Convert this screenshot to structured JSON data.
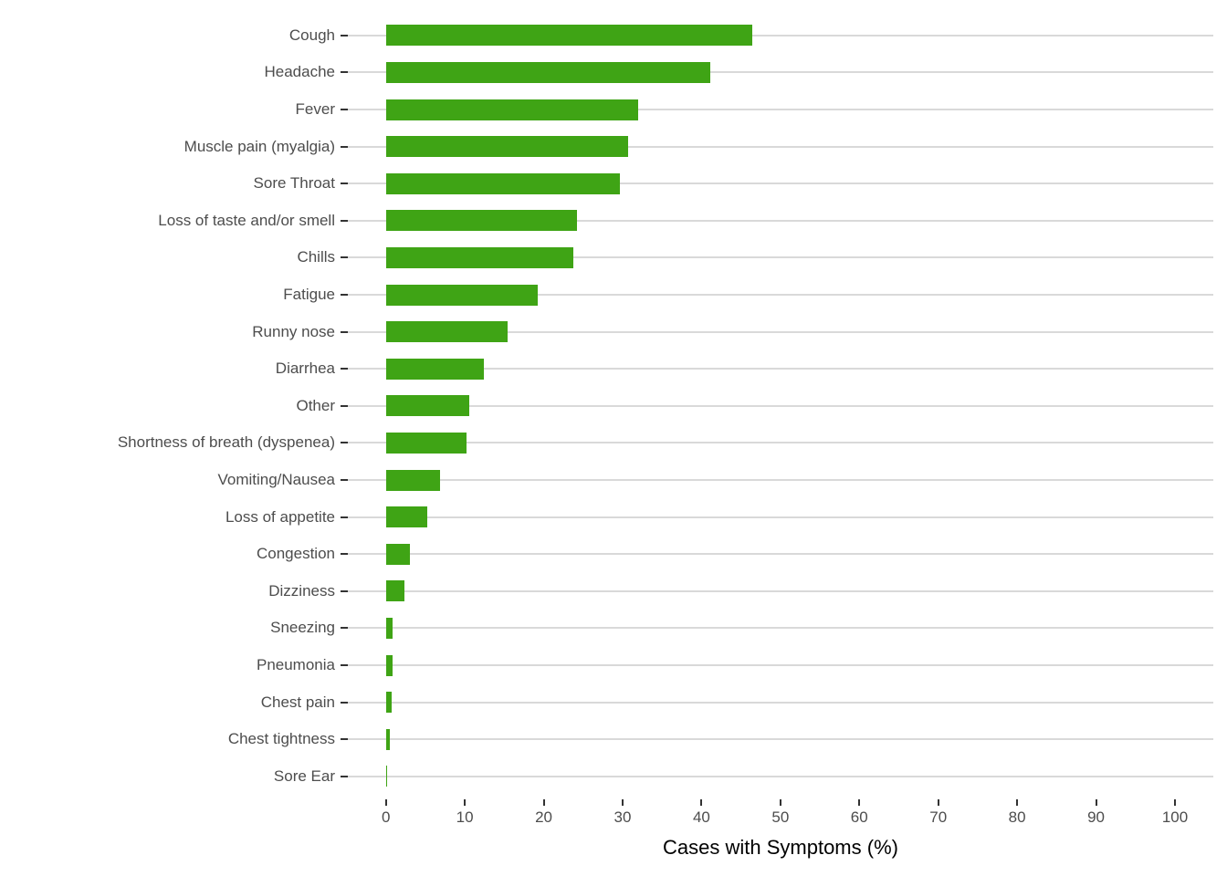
{
  "chart_data": {
    "type": "bar",
    "orientation": "horizontal",
    "title": "",
    "xlabel": "Cases with Symptoms (%)",
    "ylabel": "",
    "categories": [
      "Cough",
      "Headache",
      "Fever",
      "Muscle pain (myalgia)",
      "Sore Throat",
      "Loss of taste and/or smell",
      "Chills",
      "Fatigue",
      "Runny nose",
      "Diarrhea",
      "Other",
      "Shortness of breath (dyspenea)",
      "Vomiting/Nausea",
      "Loss of appetite",
      "Congestion",
      "Dizziness",
      "Sneezing",
      "Pneumonia",
      "Chest pain",
      "Chest tightness",
      "Sore Ear"
    ],
    "values": [
      46.4,
      41.1,
      32.0,
      30.7,
      29.6,
      24.2,
      23.7,
      19.2,
      15.4,
      12.4,
      10.6,
      10.2,
      6.9,
      5.3,
      3.1,
      2.3,
      0.9,
      0.9,
      0.7,
      0.5,
      0.1
    ],
    "xlim": [
      0,
      100
    ],
    "x_ticks": [
      0,
      10,
      20,
      30,
      40,
      50,
      60,
      70,
      80,
      90,
      100
    ],
    "grid": "horizontal-only",
    "legend": "none",
    "colors": {
      "bar": "#3fa415",
      "gridline": "#d9d9d9",
      "tick": "#333333",
      "axis_text": "#4d4d4d",
      "axis_title": "#000000",
      "background": "#ffffff"
    }
  }
}
